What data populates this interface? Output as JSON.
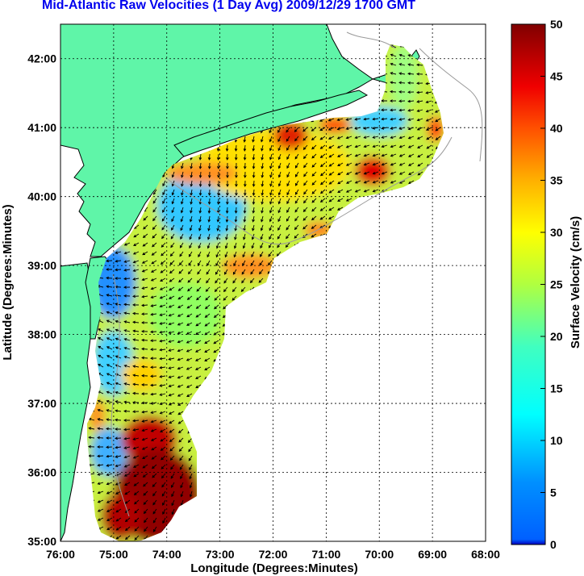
{
  "title": "Mid-Atlantic Raw Velocities (1 Day Avg) 2009/12/29 1700 GMT",
  "map": {
    "xlabel": "Longitude (Degrees:Minutes)",
    "ylabel": "Latitude (Degrees:Minutes)",
    "lon_ticks": [
      "76:00",
      "75:00",
      "74:00",
      "73:00",
      "72:00",
      "71:00",
      "70:00",
      "69:00",
      "68:00"
    ],
    "lat_ticks": [
      "42:00",
      "41:00",
      "40:00",
      "39:00",
      "38:00",
      "37:00",
      "36:00",
      "35:00"
    ],
    "lon_range": [
      -76,
      -68
    ],
    "lat_range": [
      35,
      42.5
    ],
    "grid": true,
    "land_color": "#5ff5a8",
    "ocean_color": "#ffffff",
    "coast_color": "#000000",
    "bathymetry_color": "#9a9a9a",
    "vector_color": "#000000"
  },
  "colorbar": {
    "label": "Surface Velocity (cm/s)",
    "ticks": [
      "50",
      "45",
      "40",
      "35",
      "30",
      "25",
      "20",
      "15",
      "10",
      "5",
      "0"
    ],
    "min": 0,
    "max": 50,
    "colormap": "jet"
  }
}
